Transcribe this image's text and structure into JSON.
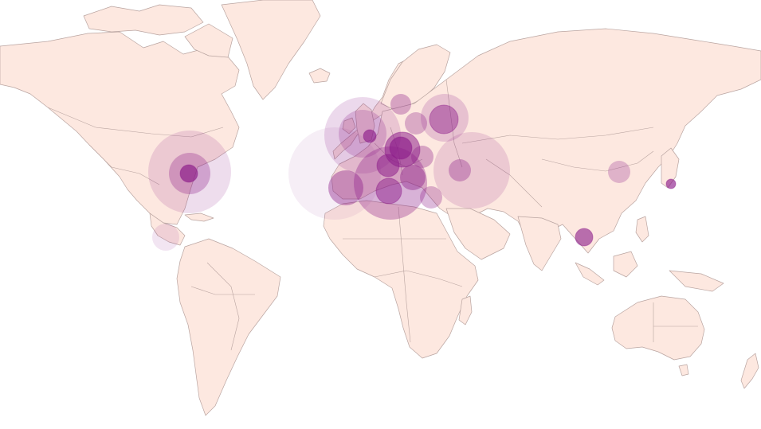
{
  "map": {
    "land_color": "#fde8e0",
    "border_color": "#b9a4a0",
    "bubble_color": "#8b1a89"
  },
  "markers": [
    {
      "id": "portugal-west",
      "intensity": 0.1,
      "level": "large"
    },
    {
      "id": "france-uk",
      "intensity": 0.22,
      "level": "large"
    },
    {
      "id": "ireland-uk",
      "intensity": 0.3,
      "level": "medium"
    },
    {
      "id": "london",
      "intensity": 0.85,
      "level": "point"
    },
    {
      "id": "spain",
      "intensity": 0.55,
      "level": "medium"
    },
    {
      "id": "italy",
      "intensity": 0.45,
      "level": "large"
    },
    {
      "id": "rome",
      "intensity": 0.65,
      "level": "medium"
    },
    {
      "id": "germany",
      "intensity": 0.7,
      "level": "medium"
    },
    {
      "id": "central-europe",
      "intensity": 0.85,
      "level": "small"
    },
    {
      "id": "switzerland",
      "intensity": 0.55,
      "level": "medium"
    },
    {
      "id": "balkans",
      "intensity": 0.7,
      "level": "medium"
    },
    {
      "id": "scandinavia",
      "intensity": 0.45,
      "level": "small"
    },
    {
      "id": "baltic",
      "intensity": 0.4,
      "level": "small"
    },
    {
      "id": "poland",
      "intensity": 0.45,
      "level": "small"
    },
    {
      "id": "moscow",
      "intensity": 0.6,
      "level": "medium"
    },
    {
      "id": "moscow-region",
      "intensity": 0.25,
      "level": "large"
    },
    {
      "id": "turkey",
      "intensity": 0.2,
      "level": "large"
    },
    {
      "id": "istanbul",
      "intensity": 0.45,
      "level": "small"
    },
    {
      "id": "greece",
      "intensity": 0.4,
      "level": "small"
    },
    {
      "id": "east-usa",
      "intensity": 0.2,
      "level": "large"
    },
    {
      "id": "east-usa-mid",
      "intensity": 0.4,
      "level": "medium"
    },
    {
      "id": "east-usa-core",
      "intensity": 0.9,
      "level": "point"
    },
    {
      "id": "central-america",
      "intensity": 0.15,
      "level": "small"
    },
    {
      "id": "china",
      "intensity": 0.35,
      "level": "small"
    },
    {
      "id": "japan",
      "intensity": 0.85,
      "level": "point"
    },
    {
      "id": "thailand",
      "intensity": 0.8,
      "level": "small"
    }
  ]
}
